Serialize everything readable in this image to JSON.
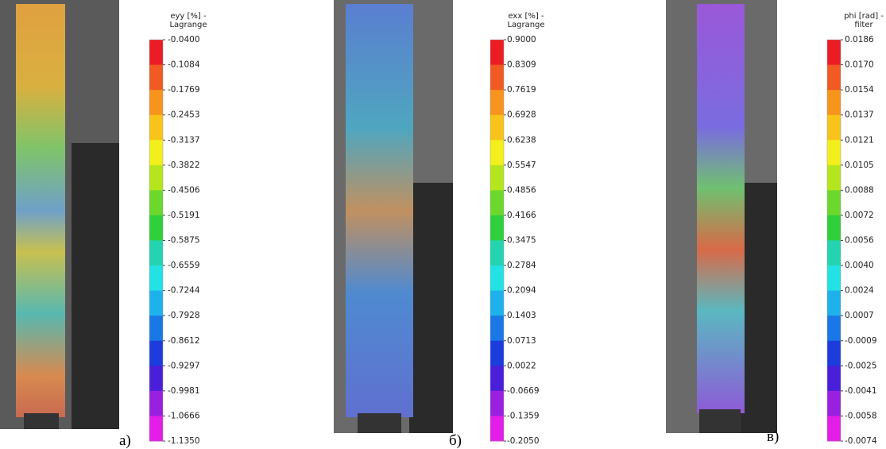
{
  "panels": [
    {
      "title": [
        "eyy [%] -",
        "Lagrange"
      ],
      "ticks": [
        "-0.0400",
        "-0.1084",
        "-0.1769",
        "-0.2453",
        "-0.3137",
        "-0.3822",
        "-0.4506",
        "-0.5191",
        "-0.5875",
        "-0.6559",
        "-0.7244",
        "-0.7928",
        "-0.8612",
        "-0.9297",
        "-0.9981",
        "-1.0666",
        "-1.1350"
      ],
      "caption": "a)"
    },
    {
      "title": [
        "exx [%] -",
        "Lagrange"
      ],
      "ticks": [
        "0.9000",
        "0.8309",
        "0.7619",
        "0.6928",
        "0.6238",
        "0.5547",
        "0.4856",
        "0.4166",
        "0.3475",
        "0.2784",
        "0.2094",
        "0.1403",
        "0.0713",
        "0.0022",
        "-0.0669",
        "-0.1359",
        "-0.2050"
      ],
      "caption": "б)"
    },
    {
      "title": [
        "phi [rad] -",
        "filter"
      ],
      "ticks": [
        "0.0186",
        "0.0170",
        "0.0154",
        "0.0137",
        "0.0121",
        "0.0105",
        "0.0088",
        "0.0072",
        "0.0056",
        "0.0040",
        "0.0024",
        "0.0007",
        "-0.0009",
        "-0.0025",
        "-0.0041",
        "-0.0058",
        "-0.0074"
      ],
      "caption": "в)"
    }
  ]
}
